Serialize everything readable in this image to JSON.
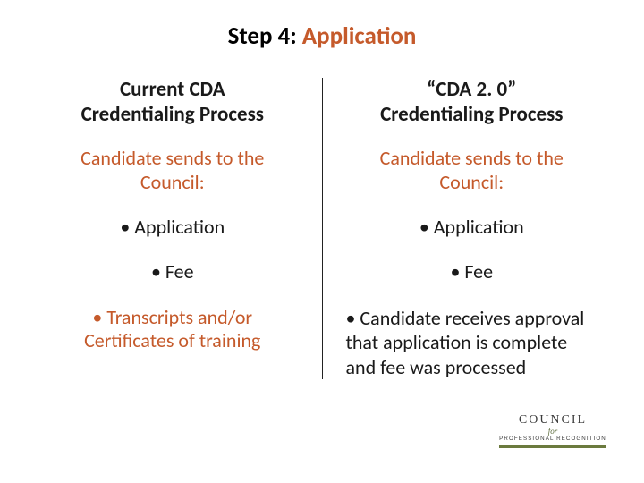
{
  "title": {
    "step": "Step 4:  ",
    "app": "Application"
  },
  "colors": {
    "accent": "#c55a2b",
    "text": "#1a1a1a",
    "logo_green": "#6b7a3e"
  },
  "left": {
    "heading_line1": "Current CDA",
    "heading_line2": "Credentialing Process",
    "sub_line1": "Candidate sends to the",
    "sub_line2": "Council:",
    "bullets": [
      "• Application",
      "• Fee"
    ],
    "last_line1": "• Transcripts and/or",
    "last_line2": "Certificates of training"
  },
  "right": {
    "heading_line1": "“CDA 2. 0”",
    "heading_line2": "Credentialing Process",
    "sub_line1": "Candidate sends to the",
    "sub_line2": "Council:",
    "bullets": [
      "• Application",
      "• Fee"
    ],
    "para": "• Candidate receives approval that application is complete and fee was processed"
  },
  "logo": {
    "line1": "COUNCIL",
    "line2": "for",
    "line3": "PROFESSIONAL RECOGNITION"
  }
}
